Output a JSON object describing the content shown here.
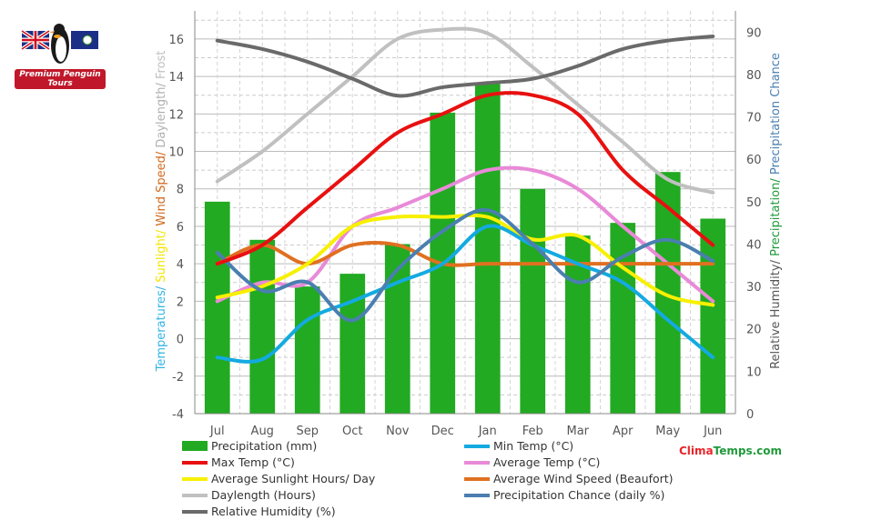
{
  "branding": {
    "logo_text": "Premium Penguin Tours",
    "site_part1": "Clima",
    "site_part2": "Temps.com"
  },
  "chart_data": {
    "type": "bar+line",
    "categories": [
      "Jul",
      "Aug",
      "Sep",
      "Oct",
      "Nov",
      "Dec",
      "Jan",
      "Feb",
      "Mar",
      "Apr",
      "May",
      "Jun"
    ],
    "left_axis": {
      "label_parts": [
        {
          "text": "Temperatures/ ",
          "color": "#33b5e5"
        },
        {
          "text": "Sunlight/ ",
          "color": "#f2e600"
        },
        {
          "text": "Wind Speed/ ",
          "color": "#d2691e"
        },
        {
          "text": "Daylength/ ",
          "color": "#b0b0b0"
        },
        {
          "text": "Frost",
          "color": "#c0c0c0"
        }
      ],
      "ylim": [
        -4,
        17.5
      ],
      "ticks": [
        -4,
        -2,
        0,
        2,
        4,
        6,
        8,
        10,
        12,
        14,
        16
      ]
    },
    "right_axis": {
      "label_parts": [
        {
          "text": "Relative Humidity/ ",
          "color": "#555555"
        },
        {
          "text": "Precipitation/ ",
          "color": "#1f9a3a"
        },
        {
          "text": "Precipitation Chance",
          "color": "#4a7fb0"
        }
      ],
      "ylim": [
        0,
        95
      ],
      "ticks": [
        0,
        10,
        20,
        30,
        40,
        50,
        60,
        70,
        80,
        90
      ]
    },
    "series": [
      {
        "name": "Precipitation (mm)",
        "kind": "bar",
        "axis": "right",
        "color": "#22aa22",
        "values": [
          50,
          41,
          30,
          33,
          40,
          71,
          78,
          53,
          42,
          45,
          57,
          46
        ]
      },
      {
        "name": "Min Temp (°C)",
        "kind": "line",
        "axis": "left",
        "color": "#13aae0",
        "values": [
          -1,
          -1.1,
          1,
          2,
          3,
          4,
          6,
          5,
          4,
          3,
          1,
          -1
        ]
      },
      {
        "name": "Max Temp (°C)",
        "kind": "line",
        "axis": "left",
        "color": "#e81010",
        "values": [
          4,
          5,
          7,
          9,
          11,
          12,
          13,
          13,
          12,
          9,
          7,
          5
        ]
      },
      {
        "name": "Average Temp (°C)",
        "kind": "line",
        "axis": "left",
        "color": "#e88ad8",
        "values": [
          2,
          3,
          3,
          6,
          7,
          8,
          9,
          9,
          8,
          6,
          4,
          2
        ]
      },
      {
        "name": "Average Sunlight Hours/ Day",
        "kind": "line",
        "axis": "left",
        "color": "#f7f000",
        "values": [
          2.2,
          2.8,
          4,
          6,
          6.5,
          6.5,
          6.5,
          5.3,
          5.5,
          3.8,
          2.3,
          1.8
        ]
      },
      {
        "name": "Average Wind Speed (Beaufort)",
        "kind": "line",
        "axis": "left",
        "color": "#e07020",
        "values": [
          4,
          5,
          4,
          5,
          5,
          4,
          4,
          4,
          4,
          4,
          4,
          4
        ]
      },
      {
        "name": "Daylength (Hours)",
        "kind": "line",
        "axis": "left",
        "color": "#c0c0c0",
        "values": [
          8.4,
          10,
          12,
          14,
          16,
          16.5,
          16.3,
          14.5,
          12.5,
          10.5,
          8.5,
          7.8
        ]
      },
      {
        "name": "Precipitation Chance (daily %)",
        "kind": "line",
        "axis": "right",
        "color": "#4a7fb0",
        "values": [
          38,
          29,
          31,
          22,
          34,
          43,
          48,
          40,
          31,
          37,
          41,
          36
        ]
      },
      {
        "name": "Relative Humidity (%)",
        "kind": "line",
        "axis": "right",
        "color": "#6a6a6a",
        "values": [
          88,
          86,
          83,
          79,
          75,
          77,
          78,
          79,
          82,
          86,
          88,
          89
        ]
      }
    ],
    "legend_position": "bottom",
    "grid": true
  }
}
